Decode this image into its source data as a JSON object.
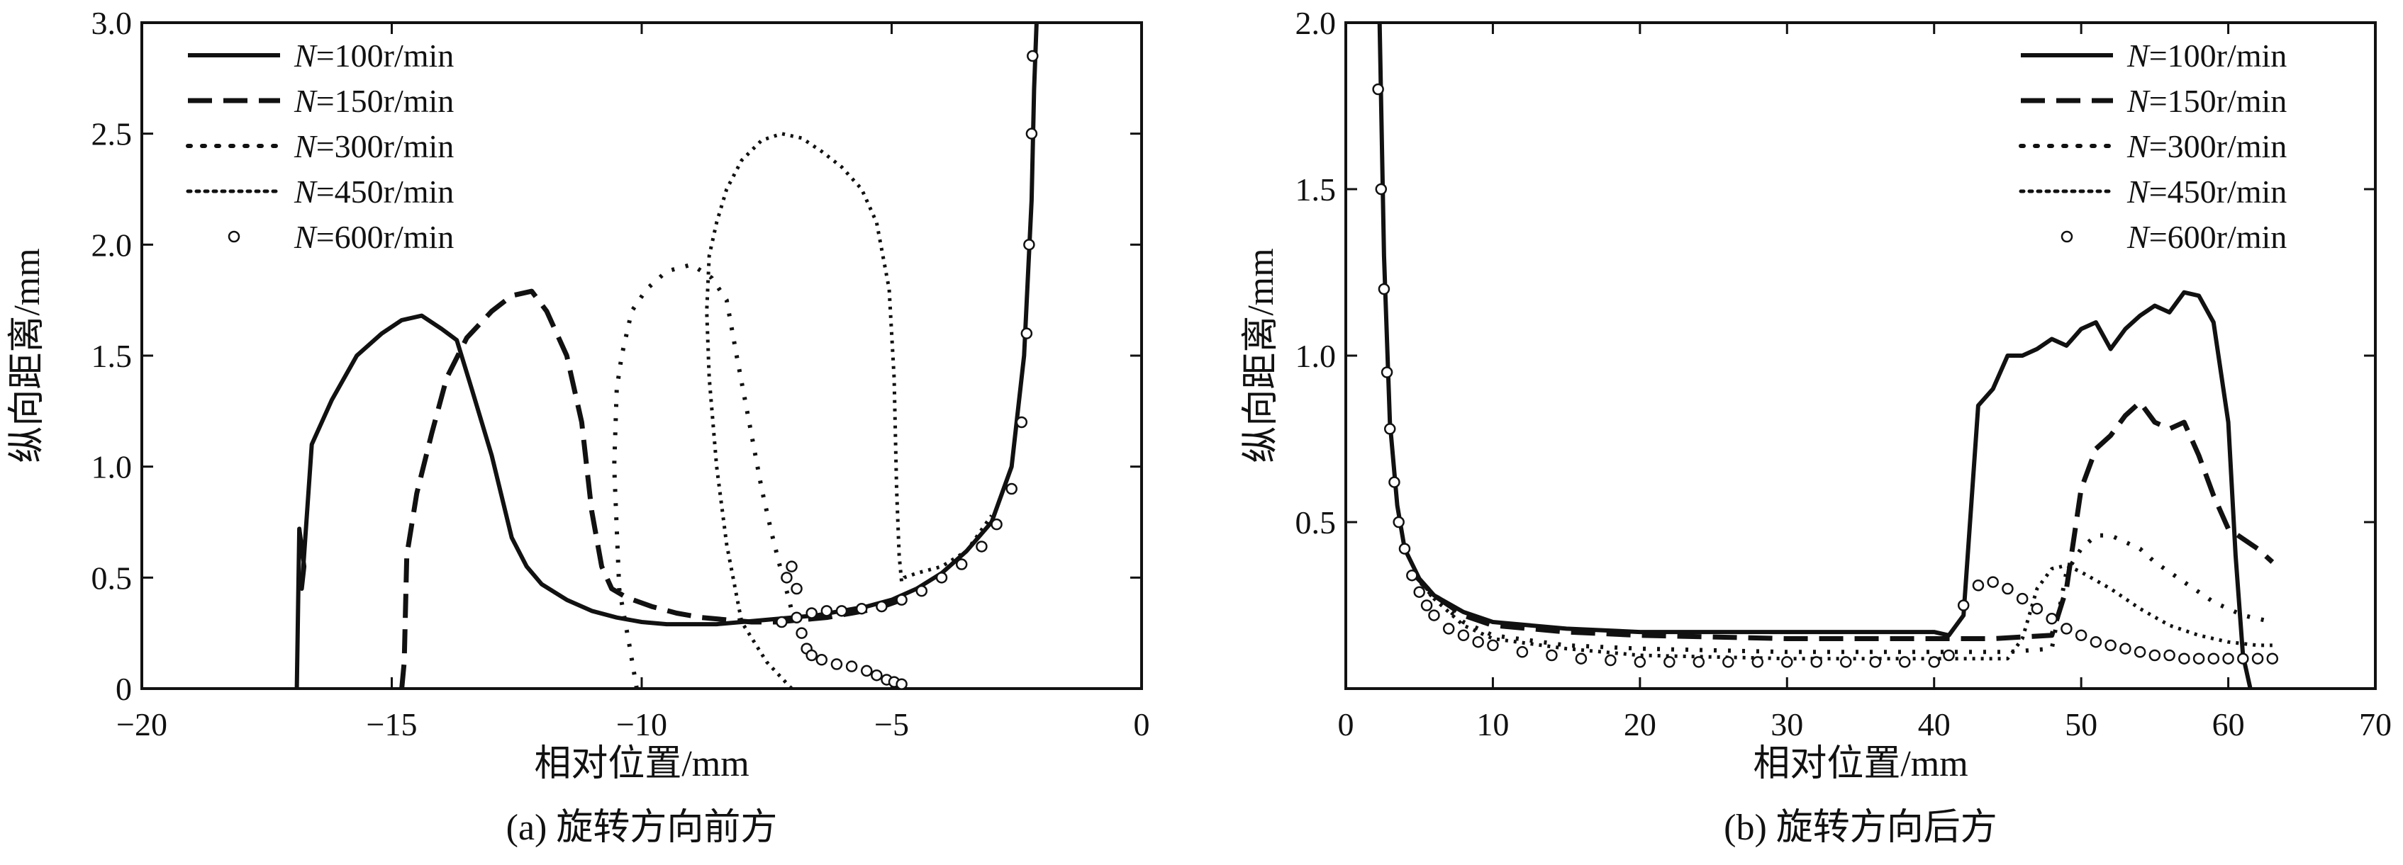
{
  "chart_data": [
    {
      "type": "line",
      "caption": "(a) 旋转方向前方",
      "xlabel": "相对位置/mm",
      "ylabel": "纵向距离/mm",
      "xlim": [
        -20,
        0
      ],
      "ylim": [
        0,
        3.0
      ],
      "xticks": [
        -20,
        -15,
        -10,
        -5,
        0
      ],
      "yticks": [
        0,
        0.5,
        1.0,
        1.5,
        2.0,
        2.5,
        3.0
      ],
      "xtick_labels": [
        "−20",
        "−15",
        "−10",
        "−5",
        "0"
      ],
      "ytick_labels": [
        "0",
        "0.5",
        "1.0",
        "1.5",
        "2.0",
        "2.5",
        "3.0"
      ],
      "legend_position": "top-left",
      "series": [
        {
          "name_var": "N",
          "name_rest": "=100r/min",
          "style": "solid",
          "x": [
            -16.9,
            -16.85,
            -16.75,
            -16.8,
            -16.6,
            -16.2,
            -15.7,
            -15.2,
            -14.8,
            -14.4,
            -14.0,
            -13.7,
            -13.4,
            -13.0,
            -12.6,
            -12.3,
            -12.0,
            -11.5,
            -11.0,
            -10.5,
            -10.0,
            -9.5,
            -9.0,
            -8.5,
            -8.0,
            -7.5,
            -7.0,
            -6.5,
            -6.0,
            -5.5,
            -5.0,
            -4.5,
            -4.0,
            -3.5,
            -3.0,
            -2.6,
            -2.35,
            -2.2,
            -2.15,
            -2.1
          ],
          "y": [
            0,
            0.72,
            0.55,
            0.45,
            1.1,
            1.3,
            1.5,
            1.6,
            1.66,
            1.68,
            1.62,
            1.57,
            1.35,
            1.05,
            0.68,
            0.55,
            0.47,
            0.4,
            0.35,
            0.32,
            0.3,
            0.29,
            0.29,
            0.29,
            0.3,
            0.31,
            0.32,
            0.33,
            0.35,
            0.37,
            0.4,
            0.45,
            0.52,
            0.62,
            0.75,
            1.0,
            1.5,
            2.2,
            2.7,
            3.0
          ]
        },
        {
          "name_var": "N",
          "name_rest": "=150r/min",
          "style": "dashed",
          "x": [
            -14.8,
            -14.75,
            -14.7,
            -14.5,
            -14.2,
            -13.9,
            -13.5,
            -13.0,
            -12.6,
            -12.2,
            -11.9,
            -11.5,
            -11.2,
            -11.0,
            -10.8,
            -10.6,
            -10.3,
            -9.8,
            -9.3,
            -8.8,
            -8.3,
            -7.8,
            -7.3,
            -6.8,
            -6.3,
            -5.8,
            -5.3,
            -4.8
          ],
          "y": [
            0,
            0.12,
            0.6,
            0.88,
            1.15,
            1.4,
            1.58,
            1.7,
            1.77,
            1.79,
            1.7,
            1.5,
            1.2,
            0.8,
            0.55,
            0.45,
            0.41,
            0.37,
            0.34,
            0.32,
            0.31,
            0.3,
            0.3,
            0.31,
            0.32,
            0.34,
            0.36,
            0.4
          ]
        },
        {
          "name_var": "N",
          "name_rest": "=300r/min",
          "style": "loose-dotted",
          "x": [
            -10.1,
            -10.25,
            -10.45,
            -10.55,
            -10.5,
            -10.4,
            -10.2,
            -9.9,
            -9.5,
            -9.0,
            -8.6,
            -8.3,
            -8.1,
            -7.85,
            -7.6,
            -7.4,
            -7.2,
            -7.05,
            -6.95
          ],
          "y": [
            0,
            0.2,
            0.45,
            1.0,
            1.35,
            1.5,
            1.7,
            1.8,
            1.88,
            1.91,
            1.85,
            1.75,
            1.5,
            1.2,
            0.9,
            0.7,
            0.52,
            0.4,
            0.3
          ]
        },
        {
          "name_var": "N",
          "name_rest": "=450r/min",
          "style": "dotted",
          "x": [
            -7.0,
            -7.5,
            -8.0,
            -8.3,
            -8.5,
            -8.65,
            -8.7,
            -8.65,
            -8.5,
            -8.3,
            -8.0,
            -7.6,
            -7.2,
            -6.8,
            -6.4,
            -6.0,
            -5.6,
            -5.3,
            -5.05,
            -4.95,
            -4.9,
            -4.85,
            -4.8,
            -4.75,
            -4.5,
            -4.0,
            -3.5,
            -3.0
          ],
          "y": [
            0,
            0.12,
            0.3,
            0.65,
            1.0,
            1.4,
            1.7,
            1.95,
            2.1,
            2.25,
            2.38,
            2.47,
            2.5,
            2.48,
            2.42,
            2.35,
            2.25,
            2.1,
            1.8,
            1.4,
            0.9,
            0.6,
            0.48,
            0.5,
            0.52,
            0.55,
            0.62,
            0.78
          ]
        },
        {
          "name_var": "N",
          "name_rest": "=600r/min",
          "style": "circle-markers",
          "x": [
            -7.2,
            -7.1,
            -7.0,
            -6.9,
            -6.8,
            -6.7,
            -6.6,
            -6.4,
            -6.1,
            -5.8,
            -5.5,
            -5.3,
            -5.1,
            -4.95,
            -4.8
          ],
          "y": [
            0.3,
            0.5,
            0.55,
            0.45,
            0.25,
            0.18,
            0.15,
            0.13,
            0.11,
            0.1,
            0.08,
            0.06,
            0.04,
            0.03,
            0.02
          ],
          "x2": [
            -6.9,
            -6.6,
            -6.3,
            -6.0,
            -5.6,
            -5.2,
            -4.8,
            -4.4,
            -4.0,
            -3.6,
            -3.2,
            -2.9,
            -2.6,
            -2.4,
            -2.3,
            -2.25,
            -2.2,
            -2.18
          ],
          "y2": [
            0.32,
            0.34,
            0.35,
            0.35,
            0.36,
            0.37,
            0.4,
            0.44,
            0.5,
            0.56,
            0.64,
            0.74,
            0.9,
            1.2,
            1.6,
            2.0,
            2.5,
            2.85
          ]
        }
      ]
    },
    {
      "type": "line",
      "caption": "(b) 旋转方向后方",
      "xlabel": "相对位置/mm",
      "ylabel": "纵向距离/mm",
      "xlim": [
        0,
        70
      ],
      "ylim": [
        0,
        2.0
      ],
      "xticks": [
        0,
        10,
        20,
        30,
        40,
        50,
        60,
        70
      ],
      "yticks": [
        0.5,
        1.0,
        1.5,
        2.0
      ],
      "xtick_labels": [
        "0",
        "10",
        "20",
        "30",
        "40",
        "50",
        "60",
        "70"
      ],
      "ytick_labels": [
        "0.5",
        "1.0",
        "1.5",
        "2.0"
      ],
      "legend_position": "top-right",
      "series": [
        {
          "name_var": "N",
          "name_rest": "=100r/min",
          "style": "solid",
          "x": [
            2.3,
            2.6,
            3.0,
            3.5,
            4.0,
            5.0,
            6.0,
            8.0,
            10,
            15,
            20,
            30,
            38,
            40,
            41,
            42,
            43,
            44,
            45,
            46,
            47,
            48,
            49,
            50,
            51,
            52,
            53,
            54,
            55,
            56,
            57,
            58,
            59,
            60,
            60.5,
            61,
            61.5
          ],
          "y": [
            2.0,
            1.3,
            0.8,
            0.55,
            0.42,
            0.33,
            0.28,
            0.23,
            0.2,
            0.18,
            0.17,
            0.17,
            0.17,
            0.17,
            0.16,
            0.22,
            0.85,
            0.9,
            1.0,
            1.0,
            1.02,
            1.05,
            1.03,
            1.08,
            1.1,
            1.02,
            1.08,
            1.12,
            1.15,
            1.13,
            1.19,
            1.18,
            1.1,
            0.8,
            0.4,
            0.1,
            0.0
          ]
        },
        {
          "name_var": "N",
          "name_rest": "=150r/min",
          "style": "dashed",
          "x": [
            4.5,
            6.0,
            8.0,
            10,
            15,
            20,
            30,
            40,
            44,
            48,
            49,
            50,
            51,
            52,
            53,
            54,
            55,
            56,
            57,
            58,
            59,
            60,
            61,
            62,
            63
          ],
          "y": [
            0.35,
            0.28,
            0.22,
            0.19,
            0.17,
            0.16,
            0.15,
            0.15,
            0.15,
            0.16,
            0.3,
            0.6,
            0.72,
            0.76,
            0.82,
            0.86,
            0.8,
            0.78,
            0.8,
            0.7,
            0.58,
            0.48,
            0.45,
            0.42,
            0.38
          ]
        },
        {
          "name_var": "N",
          "name_rest": "=300r/min",
          "style": "loose-dotted",
          "x": [
            4.5,
            6.0,
            8.0,
            10,
            15,
            20,
            30,
            40,
            45,
            48,
            49,
            50,
            51,
            52,
            53,
            54,
            55,
            57,
            59,
            61,
            63
          ],
          "y": [
            0.35,
            0.27,
            0.2,
            0.16,
            0.13,
            0.12,
            0.11,
            0.11,
            0.11,
            0.12,
            0.35,
            0.42,
            0.46,
            0.46,
            0.44,
            0.42,
            0.38,
            0.32,
            0.26,
            0.22,
            0.2
          ]
        },
        {
          "name_var": "N",
          "name_rest": "=450r/min",
          "style": "dotted",
          "x": [
            4.5,
            6.0,
            8.0,
            10,
            15,
            20,
            30,
            40,
            45,
            46,
            47,
            48,
            49,
            50,
            52,
            54,
            56,
            58,
            60,
            62,
            63
          ],
          "y": [
            0.35,
            0.27,
            0.19,
            0.15,
            0.12,
            0.1,
            0.09,
            0.09,
            0.09,
            0.15,
            0.3,
            0.36,
            0.37,
            0.35,
            0.3,
            0.24,
            0.19,
            0.16,
            0.14,
            0.13,
            0.13
          ]
        },
        {
          "name_var": "N",
          "name_rest": "=600r/min",
          "style": "circle-markers",
          "x": [
            2.2,
            2.4,
            2.6,
            2.8,
            3.0,
            3.3,
            3.6,
            4.0,
            4.5,
            5.0,
            5.5,
            6.0,
            7.0,
            8.0,
            9.0,
            10,
            12,
            14,
            16,
            18,
            20,
            22,
            24,
            26,
            28,
            30,
            32,
            34,
            36,
            38,
            40,
            41,
            42,
            43,
            44,
            45,
            46,
            47,
            48,
            49,
            50,
            51,
            52,
            53,
            54,
            55,
            56,
            57,
            58,
            59,
            60,
            61,
            62,
            63
          ],
          "y": [
            1.8,
            1.5,
            1.2,
            0.95,
            0.78,
            0.62,
            0.5,
            0.42,
            0.34,
            0.29,
            0.25,
            0.22,
            0.18,
            0.16,
            0.14,
            0.13,
            0.11,
            0.1,
            0.09,
            0.085,
            0.08,
            0.08,
            0.08,
            0.08,
            0.08,
            0.08,
            0.08,
            0.08,
            0.08,
            0.08,
            0.08,
            0.1,
            0.25,
            0.31,
            0.32,
            0.3,
            0.27,
            0.24,
            0.21,
            0.18,
            0.16,
            0.14,
            0.13,
            0.12,
            0.11,
            0.1,
            0.1,
            0.09,
            0.09,
            0.09,
            0.09,
            0.09,
            0.09,
            0.09
          ]
        }
      ]
    }
  ]
}
